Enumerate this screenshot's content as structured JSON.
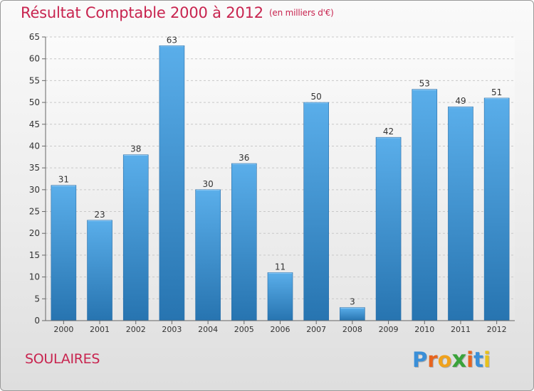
{
  "header": {
    "title": "Résultat Comptable 2000 à 2012",
    "subtitle": "(en milliers d'€)"
  },
  "footer": {
    "commune": "SOULAIRES",
    "logo_letters": [
      "P",
      "r",
      "o",
      "x",
      "i",
      "t",
      "i"
    ],
    "logo_colors": [
      "#3a8fd8",
      "#e8641e",
      "#f0a21c",
      "#3aa33a",
      "#e8641e",
      "#3a8fd8",
      "#e8c21c"
    ]
  },
  "chart_data": {
    "type": "bar",
    "title": "Résultat Comptable 2000 à 2012",
    "subtitle": "(en milliers d'€)",
    "xlabel": "",
    "ylabel": "",
    "categories": [
      "2000",
      "2001",
      "2002",
      "2003",
      "2004",
      "2005",
      "2006",
      "2007",
      "2008",
      "2009",
      "2010",
      "2011",
      "2012"
    ],
    "values": [
      31,
      23,
      38,
      63,
      30,
      36,
      11,
      50,
      3,
      42,
      53,
      49,
      51
    ],
    "ylim": [
      0,
      65
    ],
    "yticks": [
      0,
      5,
      10,
      15,
      20,
      25,
      30,
      35,
      40,
      45,
      50,
      55,
      60,
      65
    ],
    "grid": true,
    "bar_color_top": "#5aaeea",
    "bar_color_bottom": "#2774b0"
  }
}
